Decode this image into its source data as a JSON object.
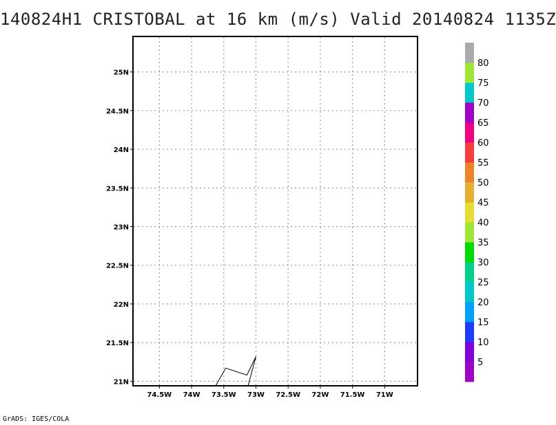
{
  "title": "140824H1 CRISTOBAL at 16 km (m/s) Valid 20140824 1135Z",
  "footer": "GrADS: IGES/COLA",
  "map": {
    "lon_range": [
      -74.9,
      -70.5
    ],
    "lat_range": [
      20.95,
      25.45
    ],
    "lon_ticks": [
      {
        "value": -74.5,
        "label": "74.5W"
      },
      {
        "value": -74.0,
        "label": "74W"
      },
      {
        "value": -73.5,
        "label": "73.5W"
      },
      {
        "value": -73.0,
        "label": "73W"
      },
      {
        "value": -72.5,
        "label": "72.5W"
      },
      {
        "value": -72.0,
        "label": "72W"
      },
      {
        "value": -71.5,
        "label": "71.5W"
      },
      {
        "value": -71.0,
        "label": "71W"
      }
    ],
    "lat_ticks": [
      {
        "value": 21.0,
        "label": "21N"
      },
      {
        "value": 21.5,
        "label": "21.5N"
      },
      {
        "value": 22.0,
        "label": "22N"
      },
      {
        "value": 22.5,
        "label": "22.5N"
      },
      {
        "value": 23.0,
        "label": "23N"
      },
      {
        "value": 23.5,
        "label": "23.5N"
      },
      {
        "value": 24.0,
        "label": "24N"
      },
      {
        "value": 24.5,
        "label": "24.5N"
      },
      {
        "value": 25.0,
        "label": "25N"
      }
    ],
    "grid": true,
    "track": [
      [
        -73.62,
        20.95
      ],
      [
        -73.47,
        21.17
      ],
      [
        -73.14,
        21.08
      ],
      [
        -73.0,
        21.32
      ],
      [
        -73.12,
        20.95
      ]
    ]
  },
  "colorbar": {
    "colors": [
      "#a000c8",
      "#8200dc",
      "#1e3cff",
      "#00a0ff",
      "#00c8c8",
      "#00d28c",
      "#00dc00",
      "#a0e632",
      "#e6dc32",
      "#e6af2d",
      "#f08228",
      "#fa3c3c",
      "#f00082",
      "#a000c8",
      "#00c8c8",
      "#a0e632",
      "#aaaaaa"
    ],
    "labels": [
      "5",
      "10",
      "15",
      "20",
      "25",
      "30",
      "35",
      "40",
      "45",
      "50",
      "55",
      "60",
      "65",
      "70",
      "75",
      "80"
    ]
  }
}
